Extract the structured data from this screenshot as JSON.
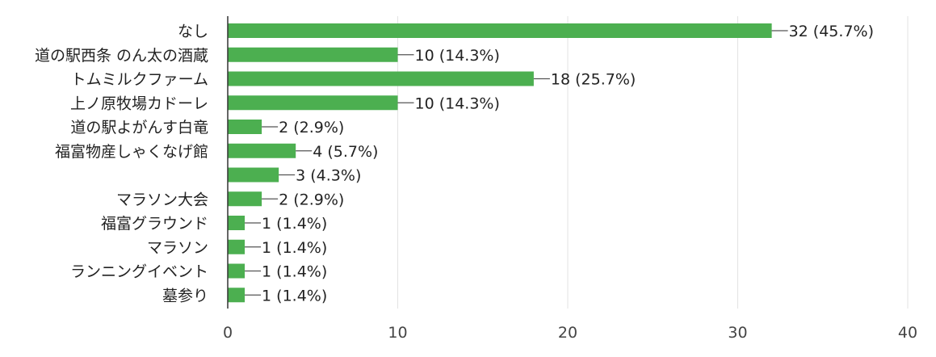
{
  "chart_data": {
    "type": "bar",
    "orientation": "horizontal",
    "categories": [
      "なし",
      "道の駅西条 のん太の酒蔵",
      "トムミルクファーム",
      "上ノ原牧場カドーレ",
      "道の駅よがんす白竜",
      "福富物産しゃくなげ館",
      "",
      "マラソン大会",
      "福富グラウンド",
      "マラソン",
      "ランニングイベント",
      "墓参り"
    ],
    "values": [
      32,
      10,
      18,
      10,
      2,
      4,
      3,
      2,
      1,
      1,
      1,
      1
    ],
    "data_labels": [
      "32 (45.7%)",
      "10 (14.3%)",
      "18 (25.7%)",
      "10 (14.3%)",
      "2 (2.9%)",
      "4 (5.7%)",
      "3 (4.3%)",
      "2 (2.9%)",
      "1 (1.4%)",
      "1 (1.4%)",
      "1 (1.4%)",
      "1 (1.4%)"
    ],
    "xlim": [
      0,
      40
    ],
    "xticks": [
      0,
      10,
      20,
      30,
      40
    ],
    "grid": true,
    "bar_color": "#4caf50",
    "title": "",
    "xlabel": "",
    "ylabel": ""
  }
}
